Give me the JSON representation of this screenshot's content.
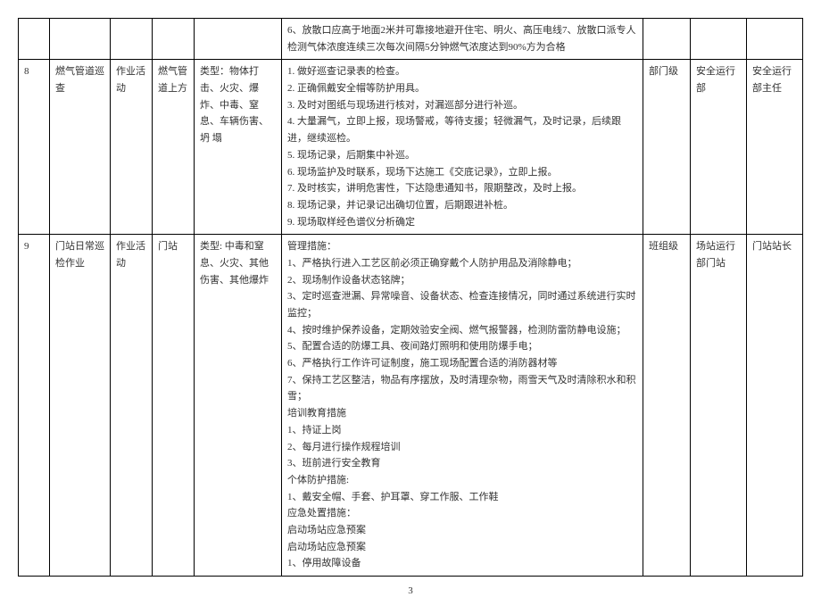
{
  "page_number": "3",
  "colors": {
    "border": "#000000",
    "text": "#333333",
    "bg": "#ffffff"
  },
  "typography": {
    "font_family": "SimSun",
    "font_size_pt": 11,
    "line_height": 1.7
  },
  "rows": [
    {
      "idx": "",
      "task": "",
      "type": "",
      "loc": "",
      "category": "",
      "desc_lines": [
        "6、放散口应高于地面2米并可靠接地避开住宅、明火、高压电线7、放散口派专人检测气体浓度连续三次每次间隔5分钟燃气浓度达到90%方为合格"
      ],
      "level": "",
      "dept": "",
      "owner": ""
    },
    {
      "idx": "8",
      "task": "燃气管道巡查",
      "type": "作业活动",
      "loc": "燃气管道上方",
      "category": "类型：物体打击、火灾、爆 炸、中毒、窒息、车辆伤害、坍 塌",
      "desc_lines": [
        "1. 做好巡查记录表的检查。",
        "2. 正确佩戴安全帽等防护用具。",
        "3. 及时对图纸与现场进行核对，对漏巡部分进行补巡。",
        "4. 大量漏气，立即上报，现场警戒，等待支援；轻微漏气，及时记录，后续跟进，继续巡检。",
        "5. 现场记录，后期集中补巡。",
        "6. 现场监护及时联系，现场下达施工《交底记录》，立即上报。",
        "7. 及时核实，讲明危害性，下达隐患通知书，限期整改，及时上报。",
        "8. 现场记录，并记录记出确切位置，后期跟进补桩。",
        "9. 现场取样经色谱仪分析确定"
      ],
      "level": "部门级",
      "dept": "安全运行部",
      "owner": "安全运行部主任"
    },
    {
      "idx": "9",
      "task": "门站日常巡检作业",
      "type": "作业活动",
      "loc": "门站",
      "category": "类型: 中毒和窒息、火灾、其他伤害、其他爆炸",
      "desc_lines": [
        "管理措施：",
        "1、严格执行进入工艺区前必须正确穿戴个人防护用品及消除静电；",
        "2、现场制作设备状态铭牌；",
        "3、定时巡查泄漏、异常噪音、设备状态、检查连接情况，同时通过系统进行实时监控；",
        "4、按时维护保养设备，定期效验安全阀、燃气报警器，检测防雷防静电设施；",
        "5、配置合适的防爆工具、夜间路灯照明和使用防爆手电；",
        "6、严格执行工作许可证制度，施工现场配置合适的消防器材等",
        "7、保持工艺区整洁，物品有序摆放，及时清理杂物，雨雪天气及时清除积水和积雪；",
        "培训教育措施",
        "1、持证上岗",
        "2、每月进行操作规程培训",
        "3、班前进行安全教育",
        "个体防护措施:",
        "1、戴安全帽、手套、护耳罩、穿工作服、工作鞋",
        "应急处置措施：",
        "启动场站应急预案",
        "启动场站应急预案",
        "1、停用故障设备"
      ],
      "level": "班组级",
      "dept": "场站运行部门站",
      "owner": "门站站长"
    }
  ]
}
